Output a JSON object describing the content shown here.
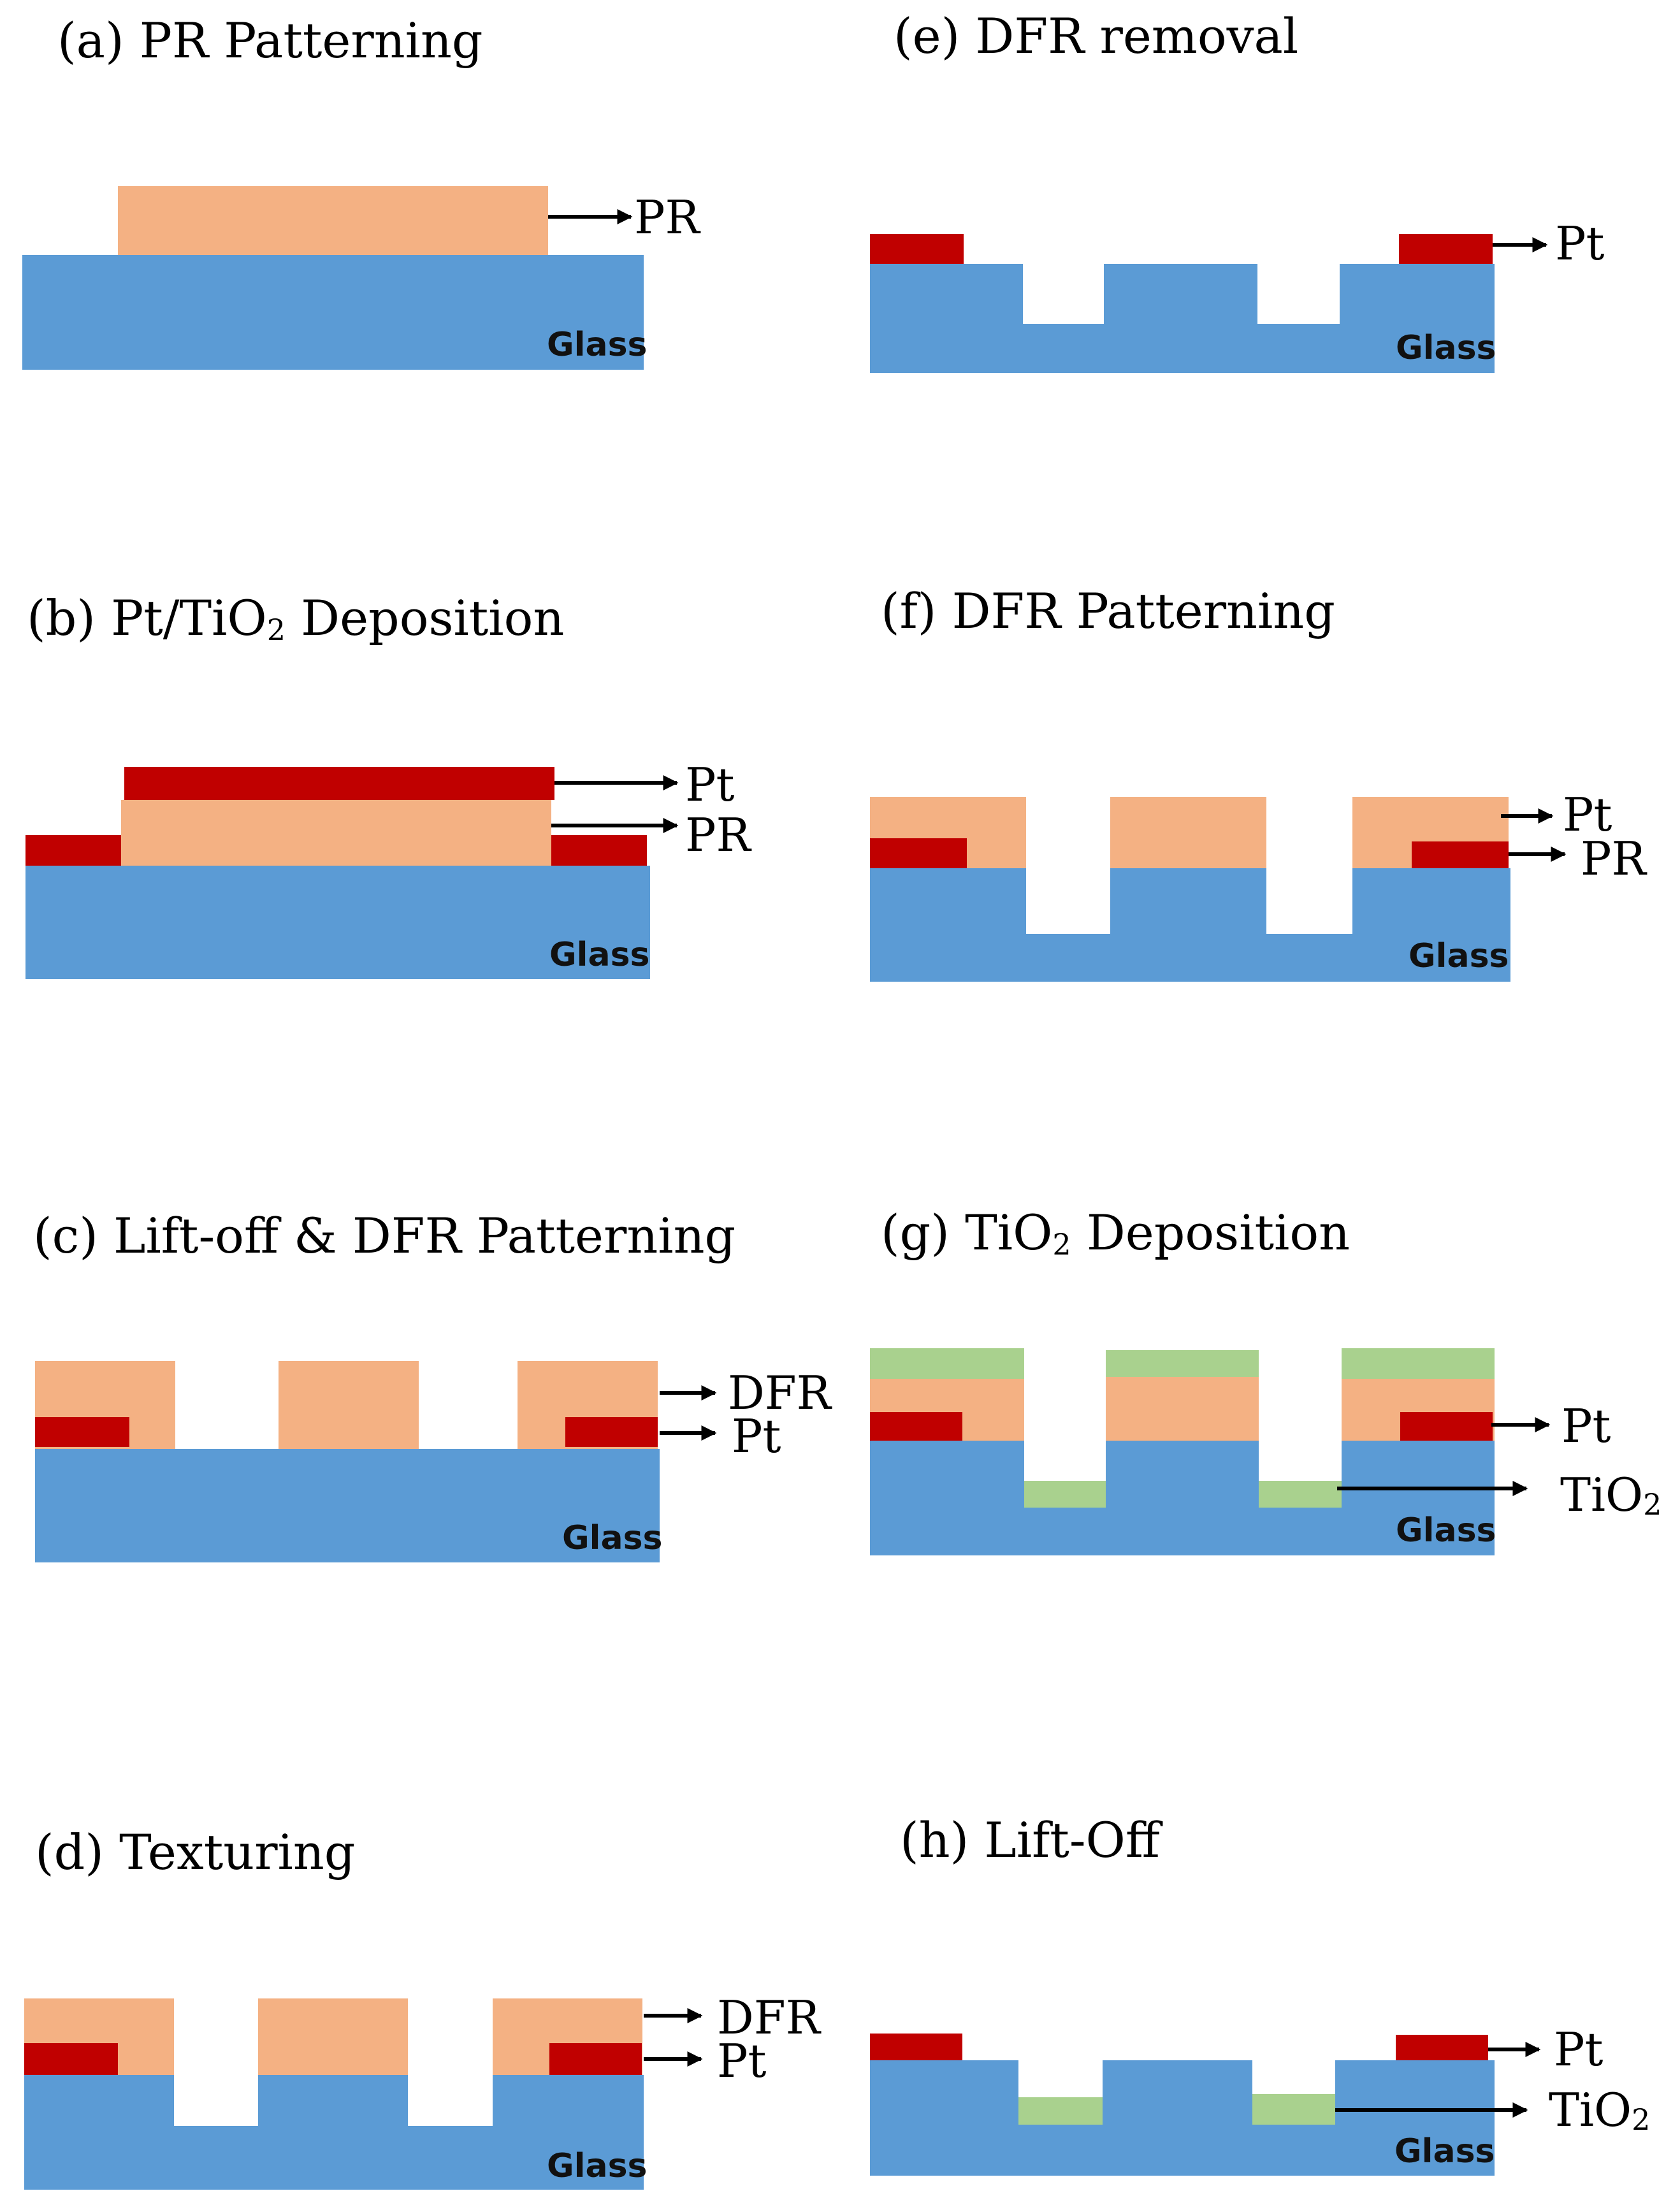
{
  "colors": {
    "glass": "#5b9bd5",
    "pr": "#f4b183",
    "pt": "#c00000",
    "tio2": "#a9d18e",
    "arrow": "#000000"
  },
  "materials": {
    "glass": "Glass",
    "pr": "PR",
    "pt": "Pt",
    "dfr": "DFR",
    "tio2_main": "TiO",
    "tio2_sub": "2"
  },
  "panels": {
    "a": {
      "title": "(a)  PR Patterning"
    },
    "b": {
      "title_pre": "(b)  Pt/TiO",
      "title_sub": "2",
      "title_post": " Deposition"
    },
    "c": {
      "title": "(c) Lift-off & DFR Patterning"
    },
    "d": {
      "title": "(d)  Texturing"
    },
    "e": {
      "title": "(e) DFR removal"
    },
    "f": {
      "title": "(f) DFR Patterning"
    },
    "g": {
      "title_pre": "(g) TiO",
      "title_sub": "2",
      "title_post": " Deposition"
    },
    "h": {
      "title": "(h) Lift-Off"
    }
  }
}
